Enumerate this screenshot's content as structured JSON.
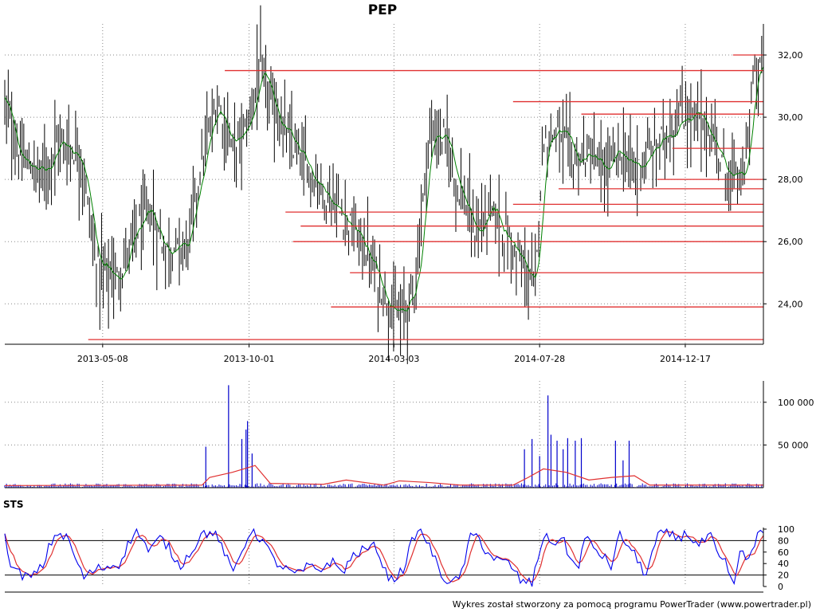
{
  "chart_data": [
    {
      "type": "ohlc",
      "title": "PEP",
      "x_tick_labels": [
        "2013-05-08",
        "2013-10-01",
        "2014-03-03",
        "2014-07-28",
        "2014-12-17"
      ],
      "y_tick_labels": [
        "24,00",
        "26,00",
        "28,00",
        "30,00",
        "32,00"
      ],
      "y_ticks": [
        24,
        26,
        28,
        30,
        32
      ],
      "ylim": [
        22.7,
        33.0
      ],
      "grid": true,
      "colors": {
        "bars": "#000000",
        "moving_average": "#008000",
        "levels": "#e03030"
      },
      "price_path": [
        [
          0,
          30.5
        ],
        [
          0.02,
          28.6
        ],
        [
          0.05,
          28.2
        ],
        [
          0.07,
          29.2
        ],
        [
          0.1,
          28.8
        ],
        [
          0.12,
          25.3
        ],
        [
          0.15,
          24.8
        ],
        [
          0.17,
          26.2
        ],
        [
          0.19,
          27.0
        ],
        [
          0.21,
          25.8
        ],
        [
          0.24,
          25.8
        ],
        [
          0.26,
          28.6
        ],
        [
          0.28,
          30.5
        ],
        [
          0.3,
          29.0
        ],
        [
          0.32,
          29.7
        ],
        [
          0.335,
          31.5
        ],
        [
          0.35,
          30.5
        ],
        [
          0.38,
          29.0
        ],
        [
          0.41,
          28.0
        ],
        [
          0.44,
          27.0
        ],
        [
          0.47,
          26.0
        ],
        [
          0.5,
          24.3
        ],
        [
          0.52,
          23.5
        ],
        [
          0.54,
          24.5
        ],
        [
          0.56,
          29.5
        ],
        [
          0.58,
          29.3
        ],
        [
          0.6,
          27.6
        ],
        [
          0.62,
          26.2
        ],
        [
          0.64,
          27.0
        ],
        [
          0.66,
          26.2
        ],
        [
          0.68,
          25.3
        ],
        [
          0.7,
          24.5
        ],
        [
          0.705,
          27.5
        ],
        [
          0.71,
          29.3
        ],
        [
          0.73,
          29.6
        ],
        [
          0.75,
          28.6
        ],
        [
          0.77,
          28.8
        ],
        [
          0.79,
          28.2
        ],
        [
          0.81,
          28.9
        ],
        [
          0.83,
          28.3
        ],
        [
          0.85,
          28.8
        ],
        [
          0.87,
          29.4
        ],
        [
          0.89,
          30.0
        ],
        [
          0.91,
          30.0
        ],
        [
          0.93,
          29.5
        ],
        [
          0.95,
          28.2
        ],
        [
          0.965,
          28.0
        ],
        [
          0.975,
          28.1
        ],
        [
          0.985,
          31.0
        ],
        [
          1.0,
          31.8
        ]
      ],
      "support_resistance_levels": [
        {
          "value": 31.5,
          "from": 0.29
        },
        {
          "value": 32.0,
          "from": 0.96
        },
        {
          "value": 30.5,
          "from": 0.67
        },
        {
          "value": 30.1,
          "from": 0.76
        },
        {
          "value": 29.0,
          "from": 0.88
        },
        {
          "value": 28.0,
          "from": 0.86
        },
        {
          "value": 27.7,
          "from": 0.73
        },
        {
          "value": 27.2,
          "from": 0.67
        },
        {
          "value": 26.95,
          "from": 0.37
        },
        {
          "value": 26.5,
          "from": 0.39
        },
        {
          "value": 26.0,
          "from": 0.38
        },
        {
          "value": 25.0,
          "from": 0.455
        },
        {
          "value": 23.9,
          "from": 0.43
        },
        {
          "value": 22.85,
          "from": 0.11
        }
      ]
    },
    {
      "type": "bar",
      "y_tick_labels": [
        "50 000",
        "100 000"
      ],
      "y_ticks": [
        50000,
        100000
      ],
      "ylim": [
        0,
        125000
      ],
      "colors": {
        "bars": "#0000cc",
        "average": "#e03030"
      },
      "spikes": [
        [
          0.265,
          48000
        ],
        [
          0.295,
          120000
        ],
        [
          0.318,
          68000
        ],
        [
          0.3125,
          57000
        ],
        [
          0.32,
          78000
        ],
        [
          0.326,
          40000
        ],
        [
          0.685,
          45000
        ],
        [
          0.695,
          57000
        ],
        [
          0.705,
          37000
        ],
        [
          0.716,
          108000
        ],
        [
          0.72,
          62000
        ],
        [
          0.728,
          55000
        ],
        [
          0.736,
          45000
        ],
        [
          0.742,
          58000
        ],
        [
          0.752,
          55000
        ],
        [
          0.76,
          58000
        ],
        [
          0.805,
          55000
        ],
        [
          0.823,
          55000
        ],
        [
          0.815,
          32000
        ]
      ],
      "average_path": [
        [
          0,
          2500
        ],
        [
          0.26,
          3000
        ],
        [
          0.27,
          12000
        ],
        [
          0.3,
          18000
        ],
        [
          0.33,
          26000
        ],
        [
          0.35,
          5000
        ],
        [
          0.42,
          4000
        ],
        [
          0.45,
          9000
        ],
        [
          0.5,
          3000
        ],
        [
          0.52,
          8000
        ],
        [
          0.56,
          6000
        ],
        [
          0.6,
          3000
        ],
        [
          0.67,
          3000
        ],
        [
          0.69,
          12000
        ],
        [
          0.71,
          22000
        ],
        [
          0.74,
          18000
        ],
        [
          0.77,
          9000
        ],
        [
          0.8,
          12000
        ],
        [
          0.83,
          14000
        ],
        [
          0.85,
          3000
        ],
        [
          1.0,
          3000
        ]
      ]
    },
    {
      "type": "line",
      "title": "STS",
      "y_tick_labels": [
        "0",
        "20",
        "40",
        "60",
        "80",
        "100"
      ],
      "y_ticks": [
        0,
        20,
        40,
        60,
        80,
        100
      ],
      "ylim": [
        0,
        100
      ],
      "reference_levels": [
        20,
        80
      ],
      "colors": {
        "k": "#0000ee",
        "d": "#e03030"
      },
      "k_path": [
        [
          0,
          85
        ],
        [
          0.01,
          30
        ],
        [
          0.02,
          22
        ],
        [
          0.035,
          15
        ],
        [
          0.05,
          35
        ],
        [
          0.06,
          75
        ],
        [
          0.07,
          95
        ],
        [
          0.085,
          80
        ],
        [
          0.095,
          40
        ],
        [
          0.105,
          15
        ],
        [
          0.12,
          30
        ],
        [
          0.135,
          35
        ],
        [
          0.15,
          38
        ],
        [
          0.165,
          80
        ],
        [
          0.175,
          100
        ],
        [
          0.19,
          60
        ],
        [
          0.205,
          85
        ],
        [
          0.215,
          70
        ],
        [
          0.23,
          35
        ],
        [
          0.245,
          60
        ],
        [
          0.26,
          92
        ],
        [
          0.275,
          95
        ],
        [
          0.29,
          60
        ],
        [
          0.3,
          20
        ],
        [
          0.31,
          55
        ],
        [
          0.325,
          100
        ],
        [
          0.34,
          80
        ],
        [
          0.355,
          45
        ],
        [
          0.37,
          30
        ],
        [
          0.385,
          20
        ],
        [
          0.4,
          35
        ],
        [
          0.415,
          28
        ],
        [
          0.43,
          45
        ],
        [
          0.445,
          25
        ],
        [
          0.46,
          55
        ],
        [
          0.475,
          65
        ],
        [
          0.49,
          70
        ],
        [
          0.5,
          30
        ],
        [
          0.51,
          10
        ],
        [
          0.525,
          30
        ],
        [
          0.54,
          90
        ],
        [
          0.55,
          95
        ],
        [
          0.56,
          70
        ],
        [
          0.575,
          20
        ],
        [
          0.59,
          5
        ],
        [
          0.6,
          15
        ],
        [
          0.615,
          90
        ],
        [
          0.625,
          85
        ],
        [
          0.635,
          60
        ],
        [
          0.65,
          45
        ],
        [
          0.665,
          40
        ],
        [
          0.68,
          10
        ],
        [
          0.695,
          5
        ],
        [
          0.71,
          90
        ],
        [
          0.72,
          75
        ],
        [
          0.735,
          85
        ],
        [
          0.745,
          50
        ],
        [
          0.755,
          30
        ],
        [
          0.765,
          85
        ],
        [
          0.775,
          70
        ],
        [
          0.79,
          50
        ],
        [
          0.8,
          35
        ],
        [
          0.81,
          90
        ],
        [
          0.82,
          75
        ],
        [
          0.83,
          55
        ],
        [
          0.845,
          20
        ],
        [
          0.86,
          85
        ],
        [
          0.87,
          95
        ],
        [
          0.885,
          85
        ],
        [
          0.9,
          92
        ],
        [
          0.915,
          70
        ],
        [
          0.93,
          90
        ],
        [
          0.94,
          50
        ],
        [
          0.95,
          40
        ],
        [
          0.96,
          0
        ],
        [
          0.97,
          60
        ],
        [
          0.98,
          45
        ],
        [
          0.99,
          85
        ],
        [
          1.0,
          95
        ]
      ]
    }
  ],
  "footer": {
    "credit": "Wykres został stworzony za pomocą programu PowerTrader (www.powertrader.pl)"
  }
}
